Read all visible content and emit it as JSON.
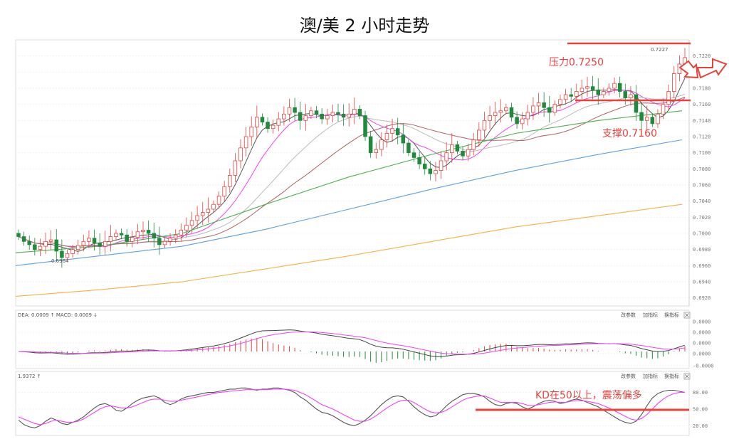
{
  "chart_data": {
    "type": "candlestick",
    "title": "澳/美 2 小时走势",
    "x_count": 124,
    "price": {
      "ylim": [
        0.691,
        0.724
      ],
      "ticks": [
        "0.7220",
        "0.7200",
        "0.7180",
        "0.7160",
        "0.7140",
        "0.7120",
        "0.7100",
        "0.7080",
        "0.7060",
        "0.7040",
        "0.7020",
        "0.7000",
        "0.6980",
        "0.6960",
        "0.6940",
        "0.6920"
      ],
      "tick_values": [
        0.722,
        0.72,
        0.718,
        0.716,
        0.714,
        0.712,
        0.71,
        0.708,
        0.706,
        0.704,
        0.702,
        0.7,
        0.698,
        0.696,
        0.694,
        0.692
      ],
      "low_label": "0.6964",
      "high_label": "0.7227",
      "closes": [
        0.6996,
        0.699,
        0.6986,
        0.698,
        0.6984,
        0.699,
        0.6992,
        0.6978,
        0.697,
        0.6975,
        0.698,
        0.6985,
        0.699,
        0.6994,
        0.6988,
        0.6984,
        0.699,
        0.6996,
        0.7,
        0.6998,
        0.699,
        0.6995,
        0.7002,
        0.7004,
        0.7,
        0.6994,
        0.6986,
        0.699,
        0.6994,
        0.6998,
        0.7004,
        0.701,
        0.7016,
        0.7022,
        0.7026,
        0.703,
        0.7036,
        0.7046,
        0.7058,
        0.7072,
        0.709,
        0.7106,
        0.712,
        0.7132,
        0.7144,
        0.7138,
        0.713,
        0.7134,
        0.7142,
        0.7148,
        0.7156,
        0.715,
        0.714,
        0.7146,
        0.7152,
        0.7148,
        0.7142,
        0.7146,
        0.715,
        0.7148,
        0.7144,
        0.7148,
        0.7154,
        0.7146,
        0.712,
        0.71,
        0.7104,
        0.7116,
        0.7124,
        0.713,
        0.7122,
        0.7112,
        0.71,
        0.7094,
        0.7086,
        0.708,
        0.7074,
        0.7078,
        0.709,
        0.71,
        0.711,
        0.7102,
        0.7096,
        0.7104,
        0.7116,
        0.7128,
        0.714,
        0.7146,
        0.715,
        0.7152,
        0.7156,
        0.7144,
        0.7136,
        0.7142,
        0.715,
        0.7158,
        0.7162,
        0.7156,
        0.715,
        0.716,
        0.7166,
        0.7172,
        0.717,
        0.7176,
        0.718,
        0.7182,
        0.7178,
        0.7172,
        0.7176,
        0.718,
        0.7186,
        0.7176,
        0.7168,
        0.7172,
        0.715,
        0.714,
        0.7144,
        0.7136,
        0.7148,
        0.716,
        0.7176,
        0.7198,
        0.721,
        0.7218
      ],
      "ma_lines": [
        {
          "color": "#555555",
          "period": 5
        },
        {
          "color": "#ee44ee",
          "period": 10
        },
        {
          "color": "#bbbbbb",
          "period": 20
        },
        {
          "color": "#b06060",
          "period": 30
        },
        {
          "color": "#4caf50",
          "period": 60
        },
        {
          "color": "#5aa0e0",
          "period": 120
        },
        {
          "color": "#f5b041",
          "period": 250
        }
      ],
      "long_ma": {
        "blue": [
          0.696,
          0.6972,
          0.6984,
          0.7005,
          0.703,
          0.7055,
          0.7078,
          0.7098,
          0.7116
        ],
        "orange": [
          0.6922,
          0.693,
          0.694,
          0.6956,
          0.6972,
          0.699,
          0.7008,
          0.7022,
          0.7036
        ],
        "green": [
          0.6976,
          0.6984,
          0.7,
          0.7036,
          0.707,
          0.7098,
          0.7124,
          0.714,
          0.7152
        ]
      }
    },
    "annotations": {
      "resistance_label": "压力0.7250",
      "support_label": "支撑0.7160",
      "kd_note": "KD在50以上，震荡偏多"
    },
    "macd": {
      "header": "DEA: 0.0009 ↑  MACD: 0.0009 ↓",
      "buttons": [
        "改参数",
        "加指标",
        "换指标"
      ],
      "ticks": [
        "0.0000",
        "0.0000",
        "0.0000",
        "0.0000",
        "-0.0000"
      ],
      "ylim": [
        -1,
        1
      ]
    },
    "kd": {
      "header": "1.9372 ↑",
      "buttons": [
        "改参数",
        "加指标",
        "换指标"
      ],
      "ticks": [
        "80.00",
        "50.00",
        "20.00"
      ],
      "tick_values": [
        80,
        50,
        20
      ],
      "ylim": [
        5,
        100
      ],
      "k": [
        30,
        22,
        18,
        16,
        20,
        28,
        34,
        30,
        24,
        22,
        26,
        30,
        36,
        44,
        52,
        58,
        60,
        56,
        48,
        46,
        52,
        60,
        66,
        70,
        72,
        74,
        70,
        62,
        58,
        62,
        68,
        72,
        74,
        76,
        78,
        80,
        80,
        82,
        84,
        86,
        86,
        88,
        88,
        86,
        84,
        86,
        86,
        88,
        88,
        86,
        84,
        80,
        72,
        66,
        58,
        50,
        44,
        42,
        38,
        32,
        26,
        22,
        20,
        24,
        30,
        38,
        48,
        58,
        66,
        72,
        74,
        72,
        64,
        54,
        46,
        40,
        36,
        38,
        46,
        56,
        64,
        70,
        76,
        78,
        78,
        76,
        72,
        64,
        58,
        56,
        60,
        62,
        60,
        54,
        50,
        54,
        60,
        64,
        66,
        64,
        60,
        62,
        66,
        68,
        66,
        62,
        58,
        54,
        48,
        42,
        36,
        30,
        26,
        24,
        28,
        40,
        56,
        70,
        78,
        82,
        84,
        84,
        82,
        80
      ],
      "d": [
        36,
        32,
        28,
        24,
        22,
        24,
        28,
        30,
        28,
        26,
        26,
        28,
        32,
        38,
        44,
        50,
        54,
        56,
        54,
        52,
        52,
        54,
        58,
        62,
        66,
        68,
        68,
        66,
        64,
        64,
        66,
        68,
        70,
        72,
        74,
        76,
        78,
        80,
        81,
        82,
        83,
        84,
        85,
        85,
        85,
        85,
        85,
        86,
        86,
        86,
        85,
        84,
        80,
        76,
        70,
        64,
        58,
        54,
        50,
        45,
        40,
        35,
        30,
        28,
        28,
        32,
        38,
        45,
        52,
        58,
        63,
        66,
        66,
        62,
        56,
        50,
        45,
        43,
        44,
        48,
        54,
        60,
        66,
        70,
        72,
        74,
        74,
        70,
        66,
        62,
        62,
        62,
        62,
        60,
        57,
        56,
        58,
        60,
        62,
        63,
        62,
        62,
        64,
        65,
        65,
        64,
        62,
        60,
        56,
        52,
        47,
        42,
        37,
        32,
        30,
        33,
        40,
        50,
        60,
        68,
        74,
        78,
        80,
        80
      ]
    }
  }
}
